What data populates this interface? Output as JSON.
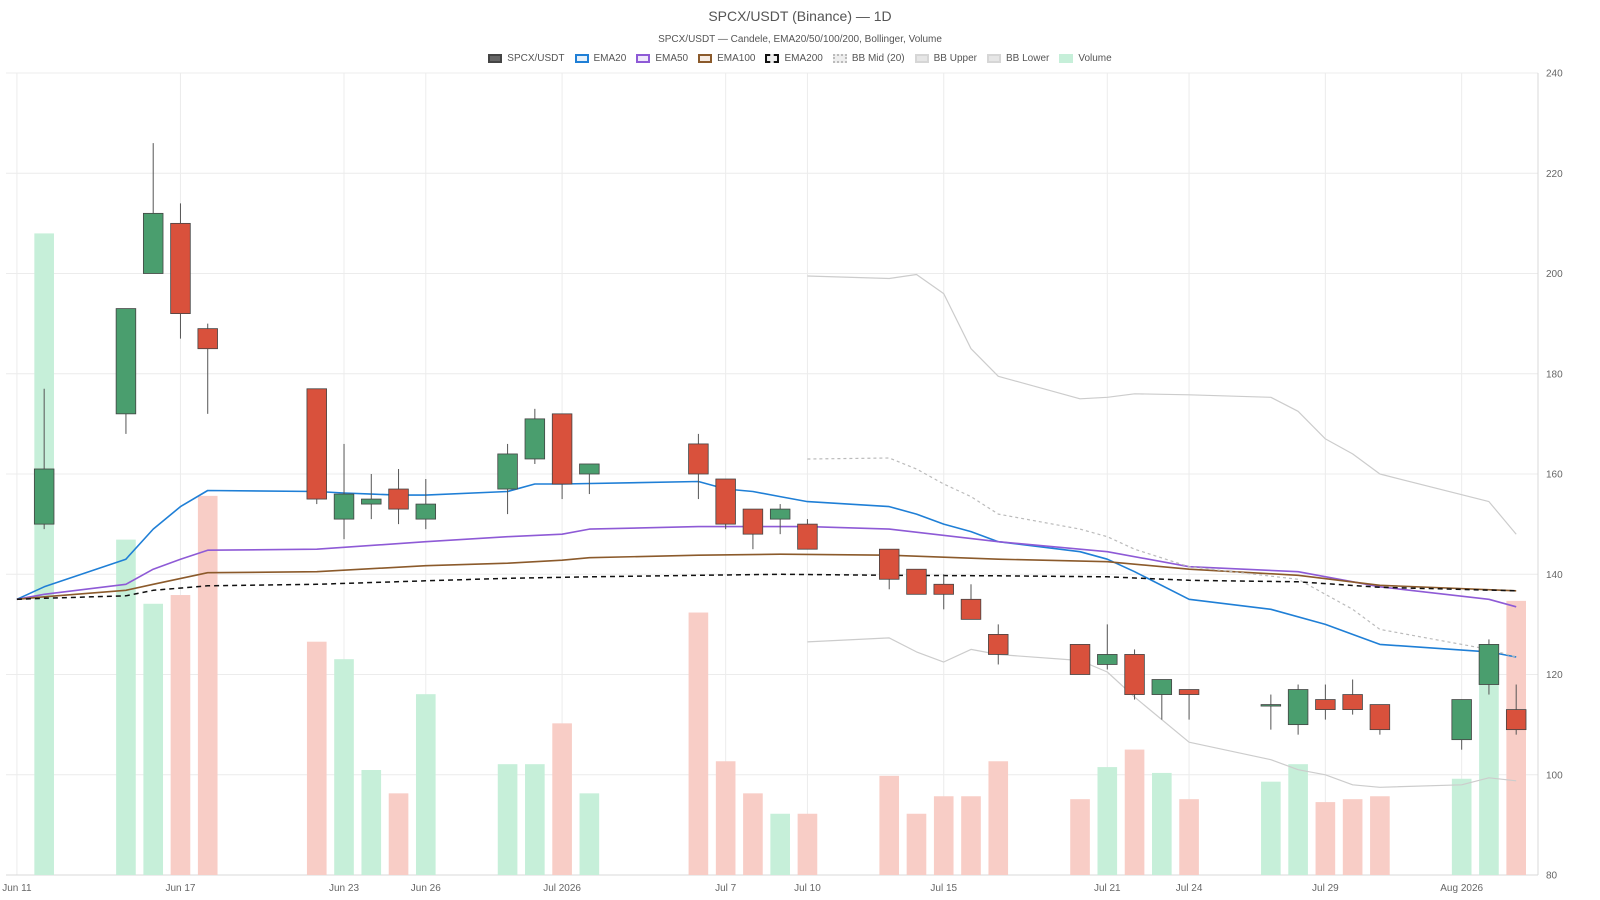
{
  "chart_data": {
    "type": "candlestick",
    "title": "SPCX/USDT (Binance) — 1D",
    "subtitle": "SPCX/USDT — Candele, EMA20/50/100/200, Bollinger, Volume",
    "legend": {
      "placement": "top-center",
      "items": [
        {
          "label": "SPCX/USDT",
          "fill": "#666666",
          "border": "#444444",
          "style": "solid"
        },
        {
          "label": "EMA20",
          "fill": "#e6f1fb",
          "border": "#1f7fd6",
          "style": "solid"
        },
        {
          "label": "EMA50",
          "fill": "#efe8fb",
          "border": "#8e5ad6",
          "style": "solid"
        },
        {
          "label": "EMA100",
          "fill": "#f6ebe2",
          "border": "#8b5a2b",
          "style": "solid"
        },
        {
          "label": "EMA200",
          "fill": "#eeeeee",
          "border": "#111111",
          "style": "dashed"
        },
        {
          "label": "BB Mid (20)",
          "fill": "#eeeeee",
          "border": "#bbbbbb",
          "style": "dotted"
        },
        {
          "label": "BB Upper",
          "fill": "#e6e6e6",
          "border": "#d6d6d6",
          "style": "solid"
        },
        {
          "label": "BB Lower",
          "fill": "#e6e6e6",
          "border": "#d6d6d6",
          "style": "solid"
        },
        {
          "label": "Volume",
          "fill": "#c6efd9",
          "border": "#c6efd9",
          "style": "solid"
        }
      ]
    },
    "x_ticks": [
      {
        "day": 0,
        "label": "Jun 11"
      },
      {
        "day": 6,
        "label": "Jun 17"
      },
      {
        "day": 12,
        "label": "Jun 23"
      },
      {
        "day": 15,
        "label": "Jun 26"
      },
      {
        "day": 20,
        "label": "Jul 2026"
      },
      {
        "day": 26,
        "label": "Jul 7"
      },
      {
        "day": 29,
        "label": "Jul 10"
      },
      {
        "day": 34,
        "label": "Jul 15"
      },
      {
        "day": 40,
        "label": "Jul 21"
      },
      {
        "day": 43,
        "label": "Jul 24"
      },
      {
        "day": 48,
        "label": "Jul 29"
      },
      {
        "day": 53,
        "label": "Aug 2026"
      }
    ],
    "y_axis": {
      "position": "right",
      "min": 80,
      "max": 240,
      "ticks": [
        80,
        100,
        120,
        140,
        160,
        180,
        200,
        220,
        240
      ]
    },
    "x_range": [
      -0.4,
      55.8
    ],
    "grid": true,
    "colors": {
      "up": "#4a9e6e",
      "down": "#d9513c",
      "up_volume": "#c6efd9",
      "down_volume": "#f8cdc6"
    },
    "candles": [
      {
        "day": 1,
        "open": 150,
        "high": 177,
        "low": 149,
        "close": 161
      },
      {
        "day": 4,
        "open": 172,
        "high": 193,
        "low": 168,
        "close": 193
      },
      {
        "day": 5,
        "open": 200,
        "high": 226,
        "low": 200,
        "close": 212
      },
      {
        "day": 6,
        "open": 210,
        "high": 214,
        "low": 187,
        "close": 192
      },
      {
        "day": 7,
        "open": 189,
        "high": 190,
        "low": 172,
        "close": 185
      },
      {
        "day": 11,
        "open": 177,
        "high": 177,
        "low": 154,
        "close": 155
      },
      {
        "day": 12,
        "open": 151,
        "high": 166,
        "low": 147,
        "close": 156
      },
      {
        "day": 13,
        "open": 154,
        "high": 160,
        "low": 151,
        "close": 155
      },
      {
        "day": 14,
        "open": 157,
        "high": 161,
        "low": 150,
        "close": 153
      },
      {
        "day": 15,
        "open": 151,
        "high": 159,
        "low": 149,
        "close": 154
      },
      {
        "day": 18,
        "open": 157,
        "high": 166,
        "low": 152,
        "close": 164
      },
      {
        "day": 19,
        "open": 163,
        "high": 173,
        "low": 162,
        "close": 171
      },
      {
        "day": 20,
        "open": 172,
        "high": 172,
        "low": 155,
        "close": 158
      },
      {
        "day": 21,
        "open": 160,
        "high": 162,
        "low": 156,
        "close": 162
      },
      {
        "day": 25,
        "open": 166,
        "high": 168,
        "low": 155,
        "close": 160
      },
      {
        "day": 26,
        "open": 159,
        "high": 159,
        "low": 149,
        "close": 150
      },
      {
        "day": 27,
        "open": 153,
        "high": 153,
        "low": 145,
        "close": 148
      },
      {
        "day": 28,
        "open": 151,
        "high": 154,
        "low": 148,
        "close": 153
      },
      {
        "day": 29,
        "open": 150,
        "high": 151,
        "low": 145,
        "close": 145
      },
      {
        "day": 32,
        "open": 145,
        "high": 145,
        "low": 137,
        "close": 139
      },
      {
        "day": 33,
        "open": 141,
        "high": 141,
        "low": 136,
        "close": 136
      },
      {
        "day": 34,
        "open": 138,
        "high": 140,
        "low": 133,
        "close": 136
      },
      {
        "day": 35,
        "open": 135,
        "high": 138,
        "low": 131,
        "close": 131
      },
      {
        "day": 36,
        "open": 128,
        "high": 130,
        "low": 122,
        "close": 124
      },
      {
        "day": 39,
        "open": 126,
        "high": 126,
        "low": 120,
        "close": 120
      },
      {
        "day": 40,
        "open": 122,
        "high": 130,
        "low": 121,
        "close": 124
      },
      {
        "day": 41,
        "open": 124,
        "high": 125,
        "low": 115,
        "close": 116
      },
      {
        "day": 42,
        "open": 116,
        "high": 119,
        "low": 111,
        "close": 119
      },
      {
        "day": 43,
        "open": 117,
        "high": 117,
        "low": 111,
        "close": 116
      },
      {
        "day": 46,
        "open": 114,
        "high": 116,
        "low": 109,
        "close": 114
      },
      {
        "day": 47,
        "open": 110,
        "high": 118,
        "low": 108,
        "close": 117
      },
      {
        "day": 48,
        "open": 115,
        "high": 118,
        "low": 111,
        "close": 113
      },
      {
        "day": 49,
        "open": 116,
        "high": 119,
        "low": 112,
        "close": 113
      },
      {
        "day": 50,
        "open": 114,
        "high": 114,
        "low": 108,
        "close": 109
      },
      {
        "day": 53,
        "open": 107,
        "high": 115,
        "low": 105,
        "close": 115
      },
      {
        "day": 54,
        "open": 118,
        "high": 127,
        "low": 116,
        "close": 126
      },
      {
        "day": 55,
        "open": 113,
        "high": 118,
        "low": 108,
        "close": 109
      }
    ],
    "volume": {
      "scale_max": 275,
      "bars": [
        {
          "day": 1,
          "value": 220,
          "up": true
        },
        {
          "day": 4,
          "value": 115,
          "up": true
        },
        {
          "day": 5,
          "value": 93,
          "up": true
        },
        {
          "day": 6,
          "value": 96,
          "up": false
        },
        {
          "day": 7,
          "value": 130,
          "up": false
        },
        {
          "day": 11,
          "value": 80,
          "up": false
        },
        {
          "day": 12,
          "value": 74,
          "up": true
        },
        {
          "day": 13,
          "value": 36,
          "up": true
        },
        {
          "day": 14,
          "value": 28,
          "up": false
        },
        {
          "day": 15,
          "value": 62,
          "up": true
        },
        {
          "day": 18,
          "value": 38,
          "up": true
        },
        {
          "day": 19,
          "value": 38,
          "up": true
        },
        {
          "day": 20,
          "value": 52,
          "up": false
        },
        {
          "day": 21,
          "value": 28,
          "up": true
        },
        {
          "day": 25,
          "value": 90,
          "up": false
        },
        {
          "day": 26,
          "value": 39,
          "up": false
        },
        {
          "day": 27,
          "value": 28,
          "up": false
        },
        {
          "day": 28,
          "value": 21,
          "up": true
        },
        {
          "day": 29,
          "value": 21,
          "up": false
        },
        {
          "day": 32,
          "value": 34,
          "up": false
        },
        {
          "day": 33,
          "value": 21,
          "up": false
        },
        {
          "day": 34,
          "value": 27,
          "up": false
        },
        {
          "day": 35,
          "value": 27,
          "up": false
        },
        {
          "day": 36,
          "value": 39,
          "up": false
        },
        {
          "day": 39,
          "value": 26,
          "up": false
        },
        {
          "day": 40,
          "value": 37,
          "up": true
        },
        {
          "day": 41,
          "value": 43,
          "up": false
        },
        {
          "day": 42,
          "value": 35,
          "up": true
        },
        {
          "day": 43,
          "value": 26,
          "up": false
        },
        {
          "day": 46,
          "value": 32,
          "up": true
        },
        {
          "day": 47,
          "value": 38,
          "up": true
        },
        {
          "day": 48,
          "value": 25,
          "up": false
        },
        {
          "day": 49,
          "value": 26,
          "up": false
        },
        {
          "day": 50,
          "value": 27,
          "up": false
        },
        {
          "day": 53,
          "value": 33,
          "up": true
        },
        {
          "day": 54,
          "value": 73,
          "up": true
        },
        {
          "day": 55,
          "value": 94,
          "up": false
        }
      ]
    },
    "series": [
      {
        "name": "EMA20",
        "color": "#1f7fd6",
        "dash": "",
        "width": 1.6,
        "points": [
          [
            0,
            135
          ],
          [
            1,
            137.5
          ],
          [
            4,
            143
          ],
          [
            5,
            149
          ],
          [
            6,
            153.5
          ],
          [
            7,
            156.7
          ],
          [
            11,
            156.5
          ],
          [
            12,
            156.2
          ],
          [
            13,
            156
          ],
          [
            14,
            155.8
          ],
          [
            15,
            155.8
          ],
          [
            18,
            156.5
          ],
          [
            19,
            158
          ],
          [
            20,
            158
          ],
          [
            25,
            158.5
          ],
          [
            26,
            157
          ],
          [
            27,
            156.5
          ],
          [
            28,
            155.5
          ],
          [
            29,
            154.5
          ],
          [
            32,
            153.5
          ],
          [
            33,
            152
          ],
          [
            34,
            150
          ],
          [
            35,
            148.5
          ],
          [
            36,
            146.5
          ],
          [
            39,
            144.5
          ],
          [
            40,
            143
          ],
          [
            41,
            140.5
          ],
          [
            43,
            135
          ],
          [
            46,
            133
          ],
          [
            48,
            130
          ],
          [
            50,
            126
          ],
          [
            54,
            124.5
          ],
          [
            55,
            123.5
          ]
        ]
      },
      {
        "name": "EMA50",
        "color": "#8e5ad6",
        "dash": "",
        "width": 1.6,
        "points": [
          [
            0,
            135
          ],
          [
            1,
            136
          ],
          [
            4,
            138
          ],
          [
            5,
            141
          ],
          [
            6,
            143
          ],
          [
            7,
            144.8
          ],
          [
            11,
            145
          ],
          [
            15,
            146.5
          ],
          [
            18,
            147.5
          ],
          [
            20,
            148
          ],
          [
            21,
            149
          ],
          [
            25,
            149.5
          ],
          [
            26,
            149.5
          ],
          [
            29,
            149.5
          ],
          [
            32,
            149
          ],
          [
            36,
            146.5
          ],
          [
            40,
            144.5
          ],
          [
            43,
            141.5
          ],
          [
            47,
            140.5
          ],
          [
            50,
            137.5
          ],
          [
            54,
            135
          ],
          [
            55,
            133.5
          ]
        ]
      },
      {
        "name": "EMA100",
        "color": "#8b5a2b",
        "dash": "",
        "width": 1.6,
        "points": [
          [
            0,
            135
          ],
          [
            1,
            135.5
          ],
          [
            4,
            136.8
          ],
          [
            5,
            138
          ],
          [
            7,
            140.3
          ],
          [
            11,
            140.5
          ],
          [
            15,
            141.7
          ],
          [
            18,
            142.2
          ],
          [
            20,
            142.8
          ],
          [
            21,
            143.3
          ],
          [
            25,
            143.8
          ],
          [
            28,
            144
          ],
          [
            32,
            143.8
          ],
          [
            36,
            143
          ],
          [
            40,
            142.5
          ],
          [
            43,
            141
          ],
          [
            47,
            139.8
          ],
          [
            50,
            137.8
          ],
          [
            55,
            136.7
          ]
        ]
      },
      {
        "name": "EMA200",
        "color": "#111111",
        "dash": "5,4",
        "width": 1.5,
        "points": [
          [
            0,
            135
          ],
          [
            1,
            135.2
          ],
          [
            4,
            135.7
          ],
          [
            5,
            136.8
          ],
          [
            7,
            137.7
          ],
          [
            11,
            138
          ],
          [
            15,
            138.7
          ],
          [
            18,
            139.2
          ],
          [
            21,
            139.5
          ],
          [
            25,
            139.8
          ],
          [
            28,
            140
          ],
          [
            32,
            139.8
          ],
          [
            36,
            139.7
          ],
          [
            40,
            139.5
          ],
          [
            43,
            138.8
          ],
          [
            47,
            138.5
          ],
          [
            50,
            137.4
          ],
          [
            55,
            136.7
          ]
        ]
      },
      {
        "name": "BB Mid (20)",
        "color": "#bbbbbb",
        "dash": "3,3",
        "width": 1.2,
        "points": [
          [
            29,
            163
          ],
          [
            32,
            163.2
          ],
          [
            33,
            161
          ],
          [
            34,
            158
          ],
          [
            35,
            155.5
          ],
          [
            36,
            152
          ],
          [
            39,
            149
          ],
          [
            40,
            147.5
          ],
          [
            41,
            145
          ],
          [
            43,
            141.5
          ],
          [
            47,
            139
          ],
          [
            49,
            133
          ],
          [
            50,
            129
          ],
          [
            54,
            125
          ],
          [
            55,
            123.5
          ]
        ]
      },
      {
        "name": "BB Upper",
        "color": "#cccccc",
        "dash": "",
        "width": 1.2,
        "points": [
          [
            29,
            199.5
          ],
          [
            32,
            199
          ],
          [
            33,
            199.8
          ],
          [
            34,
            196
          ],
          [
            35,
            185
          ],
          [
            36,
            179.5
          ],
          [
            39,
            175
          ],
          [
            40,
            175.3
          ],
          [
            41,
            176
          ],
          [
            43,
            175.8
          ],
          [
            46,
            175.3
          ],
          [
            47,
            172.5
          ],
          [
            48,
            167
          ],
          [
            49,
            164
          ],
          [
            50,
            160
          ],
          [
            54,
            154.5
          ],
          [
            55,
            148
          ]
        ]
      },
      {
        "name": "BB Lower",
        "color": "#cccccc",
        "dash": "",
        "width": 1.2,
        "points": [
          [
            29,
            126.5
          ],
          [
            32,
            127.3
          ],
          [
            33,
            124.5
          ],
          [
            34,
            122.5
          ],
          [
            35,
            125
          ],
          [
            36,
            124
          ],
          [
            39,
            122.8
          ],
          [
            40,
            120.5
          ],
          [
            41,
            115.5
          ],
          [
            43,
            106.5
          ],
          [
            46,
            103
          ],
          [
            47,
            101
          ],
          [
            48,
            100
          ],
          [
            49,
            98
          ],
          [
            50,
            97.5
          ],
          [
            53,
            98
          ],
          [
            54,
            99.4
          ],
          [
            55,
            98.8
          ]
        ]
      }
    ]
  }
}
